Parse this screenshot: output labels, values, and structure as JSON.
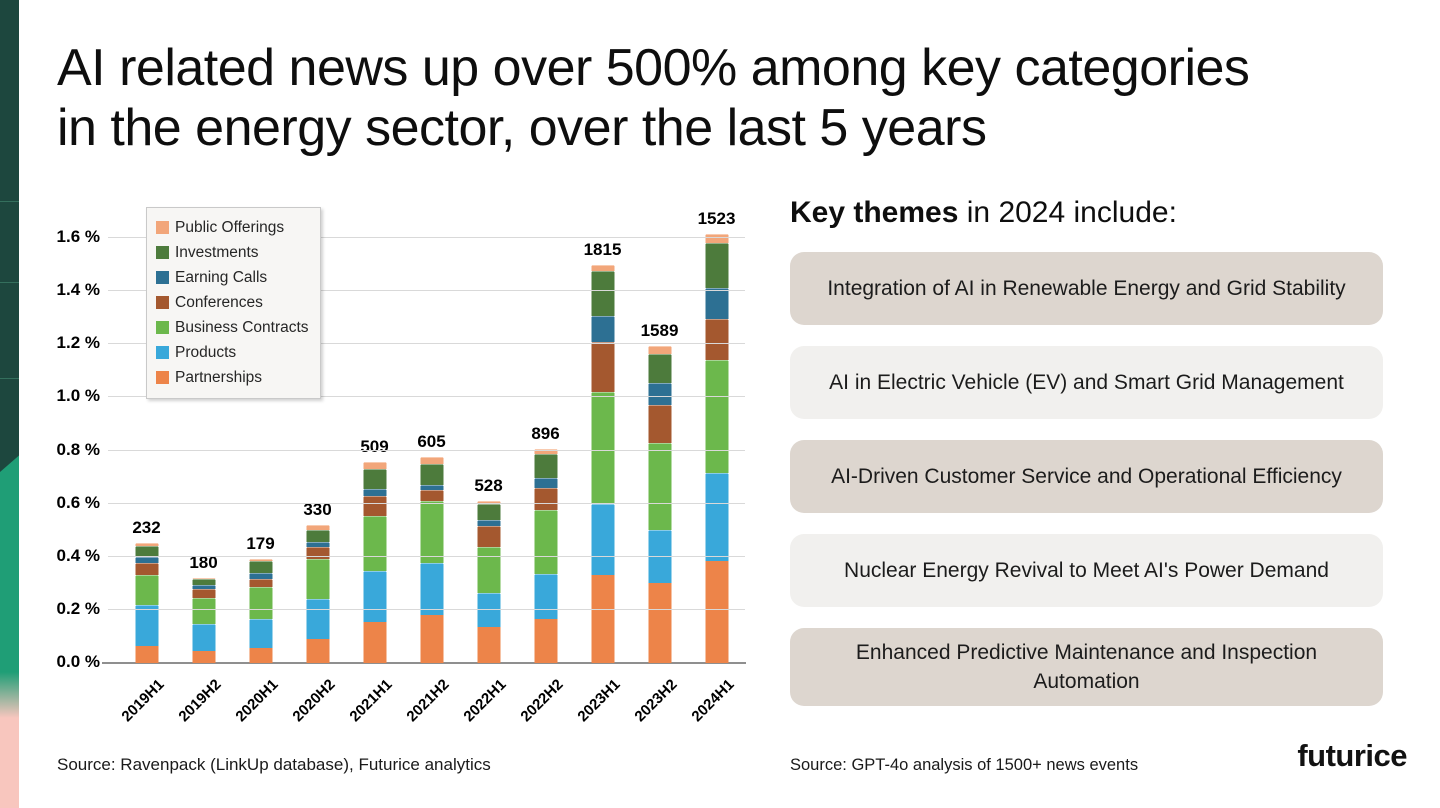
{
  "slide": {
    "title_line1": "AI related news up over 500% among key categories",
    "title_line2": "in the energy sector, over the last 5 years",
    "footer_left": "Source: Ravenpack (LinkUp database), Futurice analytics",
    "footer_right": "Source: GPT-4o analysis of 1500+ news events",
    "logo_text": "futurice"
  },
  "key_themes": {
    "heading_bold": "Key themes",
    "heading_rest": " in 2024 include:",
    "card_colors": {
      "dark_beige": "#ddd6cf",
      "light_gray": "#f1f0ee"
    },
    "items": [
      {
        "text": "Integration of AI in Renewable Energy and Grid Stability",
        "bg": "#ddd6cf"
      },
      {
        "text": "AI in Electric Vehicle (EV) and Smart Grid Management",
        "bg": "#f1f0ee"
      },
      {
        "text": "AI-Driven Customer Service and Operational Efficiency",
        "bg": "#ddd6cf"
      },
      {
        "text": "Nuclear Energy Revival to Meet AI's Power Demand",
        "bg": "#f1f0ee"
      },
      {
        "text": "Enhanced Predictive Maintenance and Inspection Automation",
        "bg": "#ddd6cf"
      }
    ]
  },
  "chart_data": {
    "type": "bar",
    "stacked": true,
    "title": "",
    "xlabel": "",
    "ylabel": "",
    "unit": "percent of news volume",
    "grid": true,
    "legend_position": "upper-left",
    "ylim": [
      0,
      1.6
    ],
    "ytick_step": 0.2,
    "yticks": [
      "0.0 %",
      "0.2 %",
      "0.4 %",
      "0.6 %",
      "0.8 %",
      "1.0 %",
      "1.2 %",
      "1.4 %",
      "1.6 %"
    ],
    "categories": [
      "2019H1",
      "2019H2",
      "2020H1",
      "2020H2",
      "2021H1",
      "2021H2",
      "2022H1",
      "2022H2",
      "2023H1",
      "2023H2",
      "2024H1"
    ],
    "bar_totals": [
      232,
      180,
      179,
      330,
      509,
      605,
      528,
      896,
      1815,
      1589,
      1523
    ],
    "series_bottom_to_top": [
      {
        "name": "Partnerships",
        "color": "#ed8449",
        "values": [
          0.065,
          0.045,
          0.055,
          0.09,
          0.155,
          0.18,
          0.135,
          0.165,
          0.33,
          0.3,
          0.385
        ]
      },
      {
        "name": "Products",
        "color": "#39a8da",
        "values": [
          0.155,
          0.1,
          0.11,
          0.15,
          0.19,
          0.195,
          0.13,
          0.17,
          0.27,
          0.2,
          0.33
        ]
      },
      {
        "name": "Business Contracts",
        "color": "#6cb84c",
        "values": [
          0.11,
          0.1,
          0.12,
          0.15,
          0.21,
          0.235,
          0.17,
          0.24,
          0.42,
          0.33,
          0.425
        ]
      },
      {
        "name": "Conferences",
        "color": "#a4582f",
        "values": [
          0.045,
          0.035,
          0.03,
          0.045,
          0.075,
          0.04,
          0.08,
          0.085,
          0.19,
          0.14,
          0.155
        ]
      },
      {
        "name": "Earning Calls",
        "color": "#2d7093",
        "values": [
          0.025,
          0.015,
          0.025,
          0.02,
          0.025,
          0.02,
          0.025,
          0.035,
          0.095,
          0.085,
          0.115
        ]
      },
      {
        "name": "Investments",
        "color": "#4d7b3c",
        "values": [
          0.04,
          0.02,
          0.045,
          0.045,
          0.075,
          0.08,
          0.06,
          0.09,
          0.17,
          0.11,
          0.17
        ]
      },
      {
        "name": "Public Offerings",
        "color": "#f2a67a",
        "values": [
          0.01,
          0.005,
          0.005,
          0.02,
          0.025,
          0.025,
          0.01,
          0.02,
          0.025,
          0.03,
          0.035
        ]
      }
    ],
    "legend_order_top_to_bottom": [
      "Public Offerings",
      "Investments",
      "Earning Calls",
      "Conferences",
      "Business Contracts",
      "Products",
      "Partnerships"
    ]
  },
  "decor": {
    "strip_dark": "#1d473e",
    "strip_green": "#1f9e76",
    "strip_pink": "#f8c6be"
  }
}
